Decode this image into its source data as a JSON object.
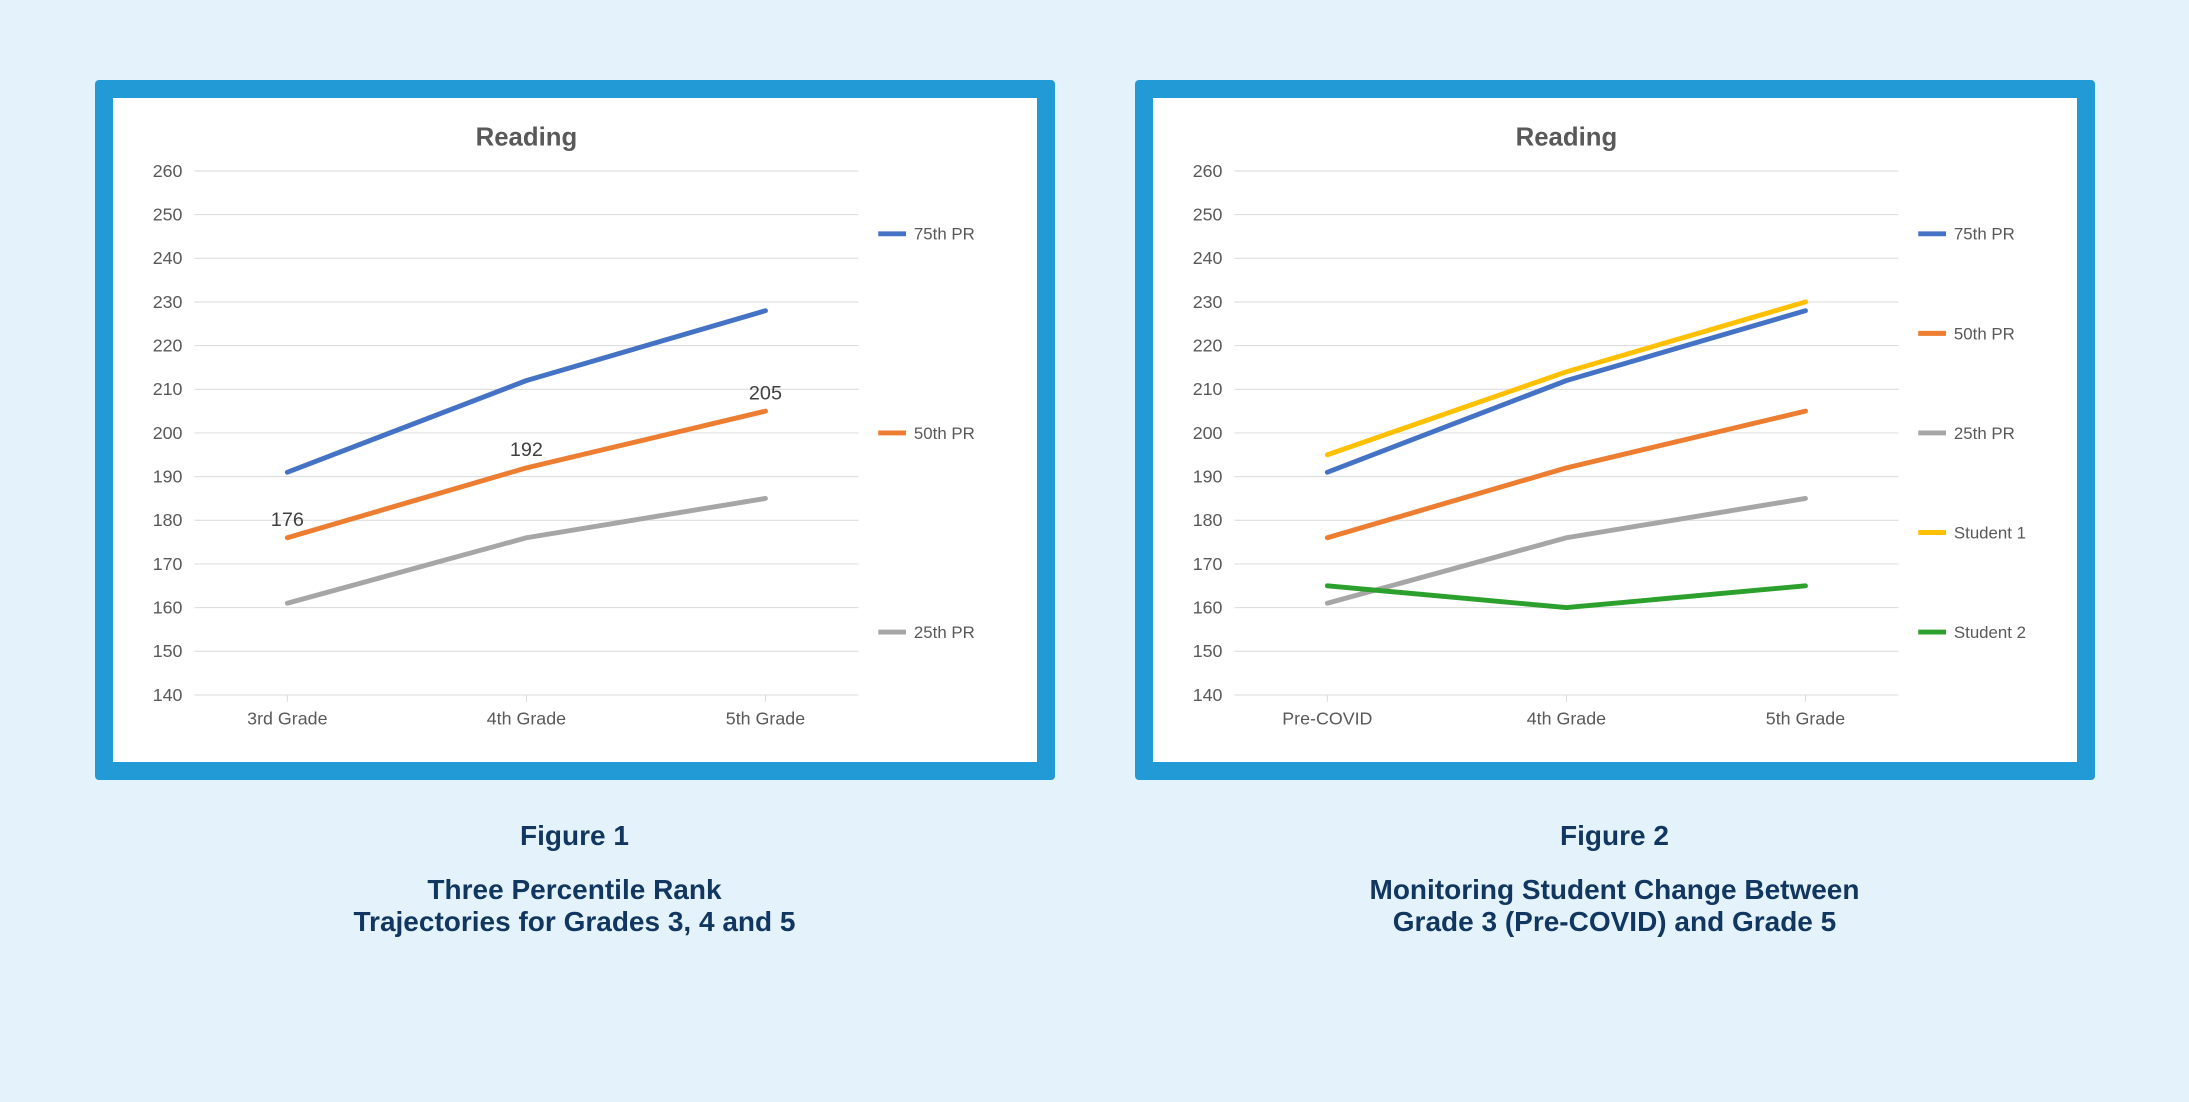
{
  "page": {
    "background_color": "#e4f3fb",
    "panel_border_color": "#219ad6",
    "panel_border_width": 18,
    "panel_bg": "#ffffff"
  },
  "typography": {
    "chart_title_fontsize": 26,
    "chart_title_color": "#595959",
    "axis_tick_fontsize": 18,
    "axis_tick_color": "#595959",
    "legend_fontsize": 17,
    "legend_color": "#595959",
    "data_label_fontsize": 20,
    "data_label_color": "#404040",
    "figure_label_fontsize": 28,
    "figure_caption_fontsize": 28,
    "caption_color": "#11365f"
  },
  "axes": {
    "ylim": [
      140,
      260
    ],
    "ytick_step": 10,
    "yticks": [
      140,
      150,
      160,
      170,
      180,
      190,
      200,
      210,
      220,
      230,
      240,
      250,
      260
    ],
    "grid_color": "#d9d9d9",
    "axis_line_color": "#d9d9d9",
    "grid_linewidth": 1
  },
  "line_style": {
    "linewidth": 5
  },
  "figure1": {
    "title": "Reading",
    "type": "line",
    "categories": [
      "3rd Grade",
      "4th Grade",
      "5th Grade"
    ],
    "series": [
      {
        "name": "75th PR",
        "color": "#4472c4",
        "values": [
          191,
          212,
          228
        ]
      },
      {
        "name": "50th PR",
        "color": "#ed7d31",
        "values": [
          176,
          192,
          205
        ]
      },
      {
        "name": "25th PR",
        "color": "#a6a6a6",
        "values": [
          161,
          176,
          185
        ]
      }
    ],
    "data_labels": [
      {
        "series": "50th PR",
        "index": 0,
        "text": "176"
      },
      {
        "series": "50th PR",
        "index": 1,
        "text": "192"
      },
      {
        "series": "50th PR",
        "index": 2,
        "text": "205"
      }
    ],
    "label": "Figure 1",
    "caption_line1": "Three Percentile Rank",
    "caption_line2": "Trajectories for Grades 3, 4 and 5"
  },
  "figure2": {
    "title": "Reading",
    "type": "line",
    "categories": [
      "Pre-COVID",
      "4th Grade",
      "5th Grade"
    ],
    "series": [
      {
        "name": "75th PR",
        "color": "#4472c4",
        "values": [
          191,
          212,
          228
        ]
      },
      {
        "name": "50th PR",
        "color": "#ed7d31",
        "values": [
          176,
          192,
          205
        ]
      },
      {
        "name": "25th PR",
        "color": "#a6a6a6",
        "values": [
          161,
          176,
          185
        ]
      },
      {
        "name": "Student 1",
        "color": "#ffc000",
        "values": [
          195,
          214,
          230
        ]
      },
      {
        "name": "Student 2",
        "color": "#2ca02c",
        "values": [
          165,
          160,
          165
        ]
      }
    ],
    "data_labels": [],
    "label": "Figure 2",
    "caption_line1": "Monitoring Student Change Between",
    "caption_line2": "Grade 3 (Pre-COVID) and Grade 5"
  }
}
